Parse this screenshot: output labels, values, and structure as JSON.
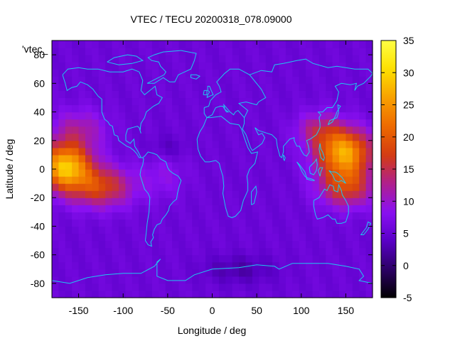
{
  "chart_data": {
    "type": "heatmap",
    "title": "VTEC / TECU 20200318_078.09000",
    "xlabel": "Longitude / deg",
    "ylabel": "Latitude / deg",
    "series_key": "'vtec_",
    "xlim": [
      -180,
      180
    ],
    "ylim": [
      -90,
      90
    ],
    "xticks": [
      -150,
      -100,
      -50,
      0,
      50,
      100,
      150
    ],
    "yticks": [
      -80,
      -60,
      -40,
      -20,
      0,
      20,
      40,
      60,
      80
    ],
    "colorbar": {
      "range": [
        -5,
        35
      ],
      "ticks": [
        -5,
        0,
        5,
        10,
        15,
        20,
        25,
        30,
        35
      ],
      "palette": [
        "#000000",
        "#2c0066",
        "#5a00c8",
        "#8a10f2",
        "#b0208c",
        "#d43c10",
        "#ee6a00",
        "#f8a000",
        "#fde000",
        "#ffff44"
      ]
    },
    "grid": false,
    "anomalies": [
      {
        "lon": -165,
        "lat": 2,
        "amp": 23,
        "slon": 28,
        "slat": 16
      },
      {
        "lon": -125,
        "lat": -12,
        "amp": 12,
        "slon": 35,
        "slat": 14
      },
      {
        "lon": -150,
        "lat": 28,
        "amp": 6,
        "slon": 30,
        "slat": 14
      },
      {
        "lon": 148,
        "lat": 12,
        "amp": 21,
        "slon": 30,
        "slat": 16
      },
      {
        "lon": 150,
        "lat": -12,
        "amp": 12,
        "slon": 30,
        "slat": 14
      },
      {
        "lon": 120,
        "lat": 28,
        "amp": 7,
        "slon": 25,
        "slat": 12
      },
      {
        "lon": -55,
        "lat": -5,
        "amp": 3,
        "slon": 25,
        "slat": 15
      },
      {
        "lon": 30,
        "lat": -70,
        "amp": -3,
        "slon": 40,
        "slat": 10
      },
      {
        "lon": -50,
        "lat": 15,
        "amp": -2,
        "slon": 20,
        "slat": 8
      }
    ],
    "background_level": 5.5,
    "colors": {
      "coastline": "#1ec8f0",
      "frame": "#000000"
    }
  }
}
